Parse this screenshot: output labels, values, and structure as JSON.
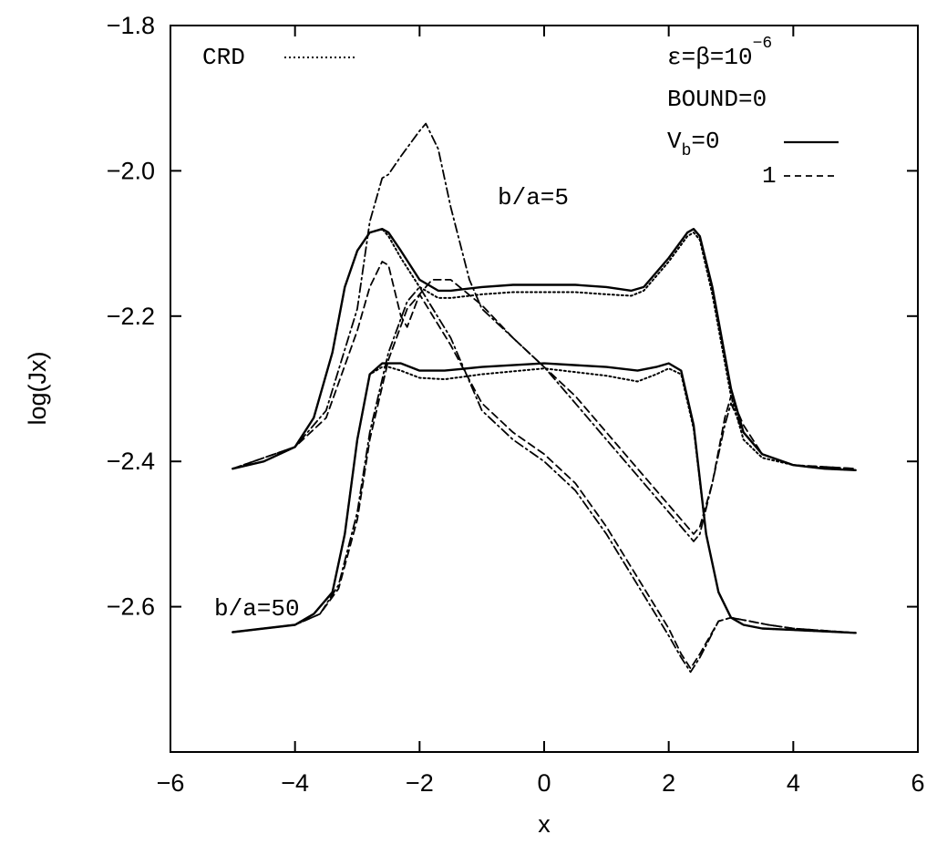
{
  "chart_data": {
    "type": "line",
    "xlabel": "x",
    "ylabel": "log(Jx)",
    "xlim": [
      -6,
      6
    ],
    "ylim": [
      -2.8,
      -1.8
    ],
    "xticks": [
      -6,
      -4,
      -2,
      0,
      2,
      4,
      6
    ],
    "xtick_labels": [
      "−6",
      "−4",
      "−2",
      "0",
      "2",
      "4",
      "6"
    ],
    "yticks": [
      -1.8,
      -2.0,
      -2.2,
      -2.4,
      -2.6
    ],
    "ytick_labels": [
      "−1.8",
      "−2.0",
      "−2.2",
      "−2.4",
      "−2.6"
    ],
    "grid": false,
    "legend": {
      "crd_label": "CRD",
      "params_eps": "ε=β=10",
      "params_exp": "−6",
      "bound": "BOUND=0",
      "vb_prefix": "V",
      "vb_sub": "b",
      "vb0": "=0",
      "vb1": "1"
    },
    "annotations": [
      {
        "text": "b/a=5",
        "x": -0.6,
        "y": -2.04
      },
      {
        "text": "b/a=50",
        "x": -3.5,
        "y": -2.62
      }
    ],
    "series": [
      {
        "group": "b/a=5",
        "style": "solid",
        "x": [
          -5,
          -4.5,
          -4,
          -3.7,
          -3.4,
          -3.2,
          -3.0,
          -2.8,
          -2.6,
          -2.5,
          -2.3,
          -2.0,
          -1.7,
          -1.5,
          -1.0,
          -0.5,
          0,
          0.5,
          1.0,
          1.4,
          1.6,
          2.0,
          2.3,
          2.4,
          2.5,
          2.7,
          3.0,
          3.2,
          3.5,
          4,
          4.5,
          5
        ],
        "y": [
          -2.41,
          -2.4,
          -2.38,
          -2.34,
          -2.25,
          -2.16,
          -2.11,
          -2.085,
          -2.08,
          -2.085,
          -2.11,
          -2.15,
          -2.165,
          -2.165,
          -2.16,
          -2.157,
          -2.157,
          -2.157,
          -2.16,
          -2.165,
          -2.16,
          -2.12,
          -2.085,
          -2.08,
          -2.09,
          -2.16,
          -2.3,
          -2.36,
          -2.39,
          -2.405,
          -2.41,
          -2.412
        ]
      },
      {
        "group": "b/a=5",
        "style": "crd",
        "x": [
          -5,
          -4.5,
          -4,
          -3.7,
          -3.4,
          -3.2,
          -3.0,
          -2.8,
          -2.6,
          -2.5,
          -2.3,
          -2.0,
          -1.7,
          -1.5,
          -1.0,
          -0.5,
          0,
          0.5,
          1.0,
          1.4,
          1.6,
          2.0,
          2.3,
          2.4,
          2.5,
          2.7,
          3.0,
          3.2,
          3.5,
          4,
          4.5,
          5
        ],
        "y": [
          -2.41,
          -2.4,
          -2.38,
          -2.34,
          -2.25,
          -2.16,
          -2.11,
          -2.085,
          -2.08,
          -2.09,
          -2.12,
          -2.16,
          -2.175,
          -2.175,
          -2.17,
          -2.167,
          -2.167,
          -2.167,
          -2.17,
          -2.172,
          -2.165,
          -2.125,
          -2.09,
          -2.085,
          -2.095,
          -2.17,
          -2.31,
          -2.37,
          -2.395,
          -2.405,
          -2.41,
          -2.412
        ]
      },
      {
        "group": "b/a=5",
        "style": "dashdot",
        "x": [
          -5,
          -4,
          -3.5,
          -3.0,
          -2.8,
          -2.6,
          -2.5,
          -2.3,
          -2.0,
          -1.9,
          -1.7,
          -1.5,
          -1.2,
          -1.0,
          -0.5,
          0,
          0.5,
          1.0,
          1.5,
          2.0,
          2.3,
          2.4,
          2.5,
          2.7,
          2.9,
          3.0,
          3.2,
          3.5,
          4,
          5
        ],
        "y": [
          -2.41,
          -2.38,
          -2.33,
          -2.19,
          -2.07,
          -2.01,
          -2.005,
          -1.98,
          -1.945,
          -1.935,
          -1.97,
          -2.05,
          -2.15,
          -2.19,
          -2.23,
          -2.27,
          -2.32,
          -2.37,
          -2.42,
          -2.47,
          -2.5,
          -2.51,
          -2.5,
          -2.43,
          -2.35,
          -2.32,
          -2.36,
          -2.39,
          -2.405,
          -2.41
        ]
      },
      {
        "group": "b/a=5",
        "style": "dashed",
        "x": [
          -5,
          -4,
          -3.5,
          -3.0,
          -2.8,
          -2.6,
          -2.5,
          -2.3,
          -2.2,
          -2.0,
          -1.8,
          -1.5,
          -1.0,
          -0.5,
          0,
          0.5,
          1.0,
          1.5,
          2.0,
          2.3,
          2.4,
          2.5,
          2.7,
          2.9,
          3.0,
          3.2,
          3.5,
          4,
          5
        ],
        "y": [
          -2.41,
          -2.38,
          -2.34,
          -2.22,
          -2.16,
          -2.125,
          -2.13,
          -2.2,
          -2.215,
          -2.17,
          -2.15,
          -2.15,
          -2.185,
          -2.23,
          -2.27,
          -2.31,
          -2.36,
          -2.41,
          -2.46,
          -2.49,
          -2.5,
          -2.49,
          -2.43,
          -2.34,
          -2.31,
          -2.35,
          -2.39,
          -2.405,
          -2.41
        ]
      },
      {
        "group": "b/a=50",
        "style": "solid",
        "x": [
          -5,
          -4,
          -3.7,
          -3.4,
          -3.2,
          -3.0,
          -2.8,
          -2.6,
          -2.5,
          -2.3,
          -2.0,
          -1.6,
          -1.0,
          0,
          1.0,
          1.5,
          1.8,
          2.0,
          2.2,
          2.4,
          2.6,
          2.8,
          3.0,
          3.2,
          3.5,
          4,
          4.5,
          5
        ],
        "y": [
          -2.635,
          -2.625,
          -2.61,
          -2.58,
          -2.5,
          -2.37,
          -2.28,
          -2.265,
          -2.265,
          -2.265,
          -2.275,
          -2.275,
          -2.27,
          -2.265,
          -2.27,
          -2.275,
          -2.27,
          -2.265,
          -2.275,
          -2.35,
          -2.5,
          -2.58,
          -2.615,
          -2.625,
          -2.63,
          -2.632,
          -2.634,
          -2.636
        ]
      },
      {
        "group": "b/a=50",
        "style": "crd",
        "x": [
          -5,
          -4,
          -3.7,
          -3.4,
          -3.2,
          -3.0,
          -2.8,
          -2.6,
          -2.5,
          -2.3,
          -2.0,
          -1.6,
          -1.0,
          0,
          1.0,
          1.5,
          1.8,
          2.0,
          2.2,
          2.4,
          2.6,
          2.8,
          3.0,
          3.2,
          3.5,
          4,
          4.5,
          5
        ],
        "y": [
          -2.635,
          -2.625,
          -2.61,
          -2.58,
          -2.5,
          -2.37,
          -2.28,
          -2.27,
          -2.27,
          -2.275,
          -2.285,
          -2.287,
          -2.28,
          -2.272,
          -2.282,
          -2.29,
          -2.28,
          -2.272,
          -2.28,
          -2.355,
          -2.5,
          -2.58,
          -2.615,
          -2.625,
          -2.63,
          -2.632,
          -2.634,
          -2.636
        ]
      },
      {
        "group": "b/a=50",
        "style": "dashdot",
        "x": [
          -5,
          -4,
          -3.6,
          -3.3,
          -3.0,
          -2.8,
          -2.5,
          -2.2,
          -2.0,
          -1.5,
          -1.0,
          -0.5,
          0,
          0.5,
          1.0,
          1.5,
          2.0,
          2.2,
          2.35,
          2.5,
          2.8,
          3.0,
          3.3,
          3.6,
          4,
          5
        ],
        "y": [
          -2.635,
          -2.625,
          -2.61,
          -2.57,
          -2.47,
          -2.36,
          -2.25,
          -2.18,
          -2.16,
          -2.23,
          -2.33,
          -2.37,
          -2.4,
          -2.44,
          -2.5,
          -2.57,
          -2.64,
          -2.67,
          -2.69,
          -2.67,
          -2.62,
          -2.615,
          -2.62,
          -2.625,
          -2.63,
          -2.636
        ]
      },
      {
        "group": "b/a=50",
        "style": "dashed",
        "x": [
          -5,
          -4,
          -3.6,
          -3.3,
          -3.0,
          -2.8,
          -2.5,
          -2.2,
          -2.0,
          -1.5,
          -1.0,
          -0.5,
          0,
          0.5,
          1.0,
          1.5,
          2.0,
          2.2,
          2.35,
          2.5,
          2.8,
          3.0,
          3.3,
          3.6,
          4,
          5
        ],
        "y": [
          -2.635,
          -2.625,
          -2.61,
          -2.575,
          -2.48,
          -2.37,
          -2.26,
          -2.19,
          -2.17,
          -2.24,
          -2.32,
          -2.36,
          -2.39,
          -2.43,
          -2.49,
          -2.56,
          -2.63,
          -2.665,
          -2.685,
          -2.665,
          -2.62,
          -2.615,
          -2.62,
          -2.625,
          -2.63,
          -2.636
        ]
      }
    ]
  }
}
